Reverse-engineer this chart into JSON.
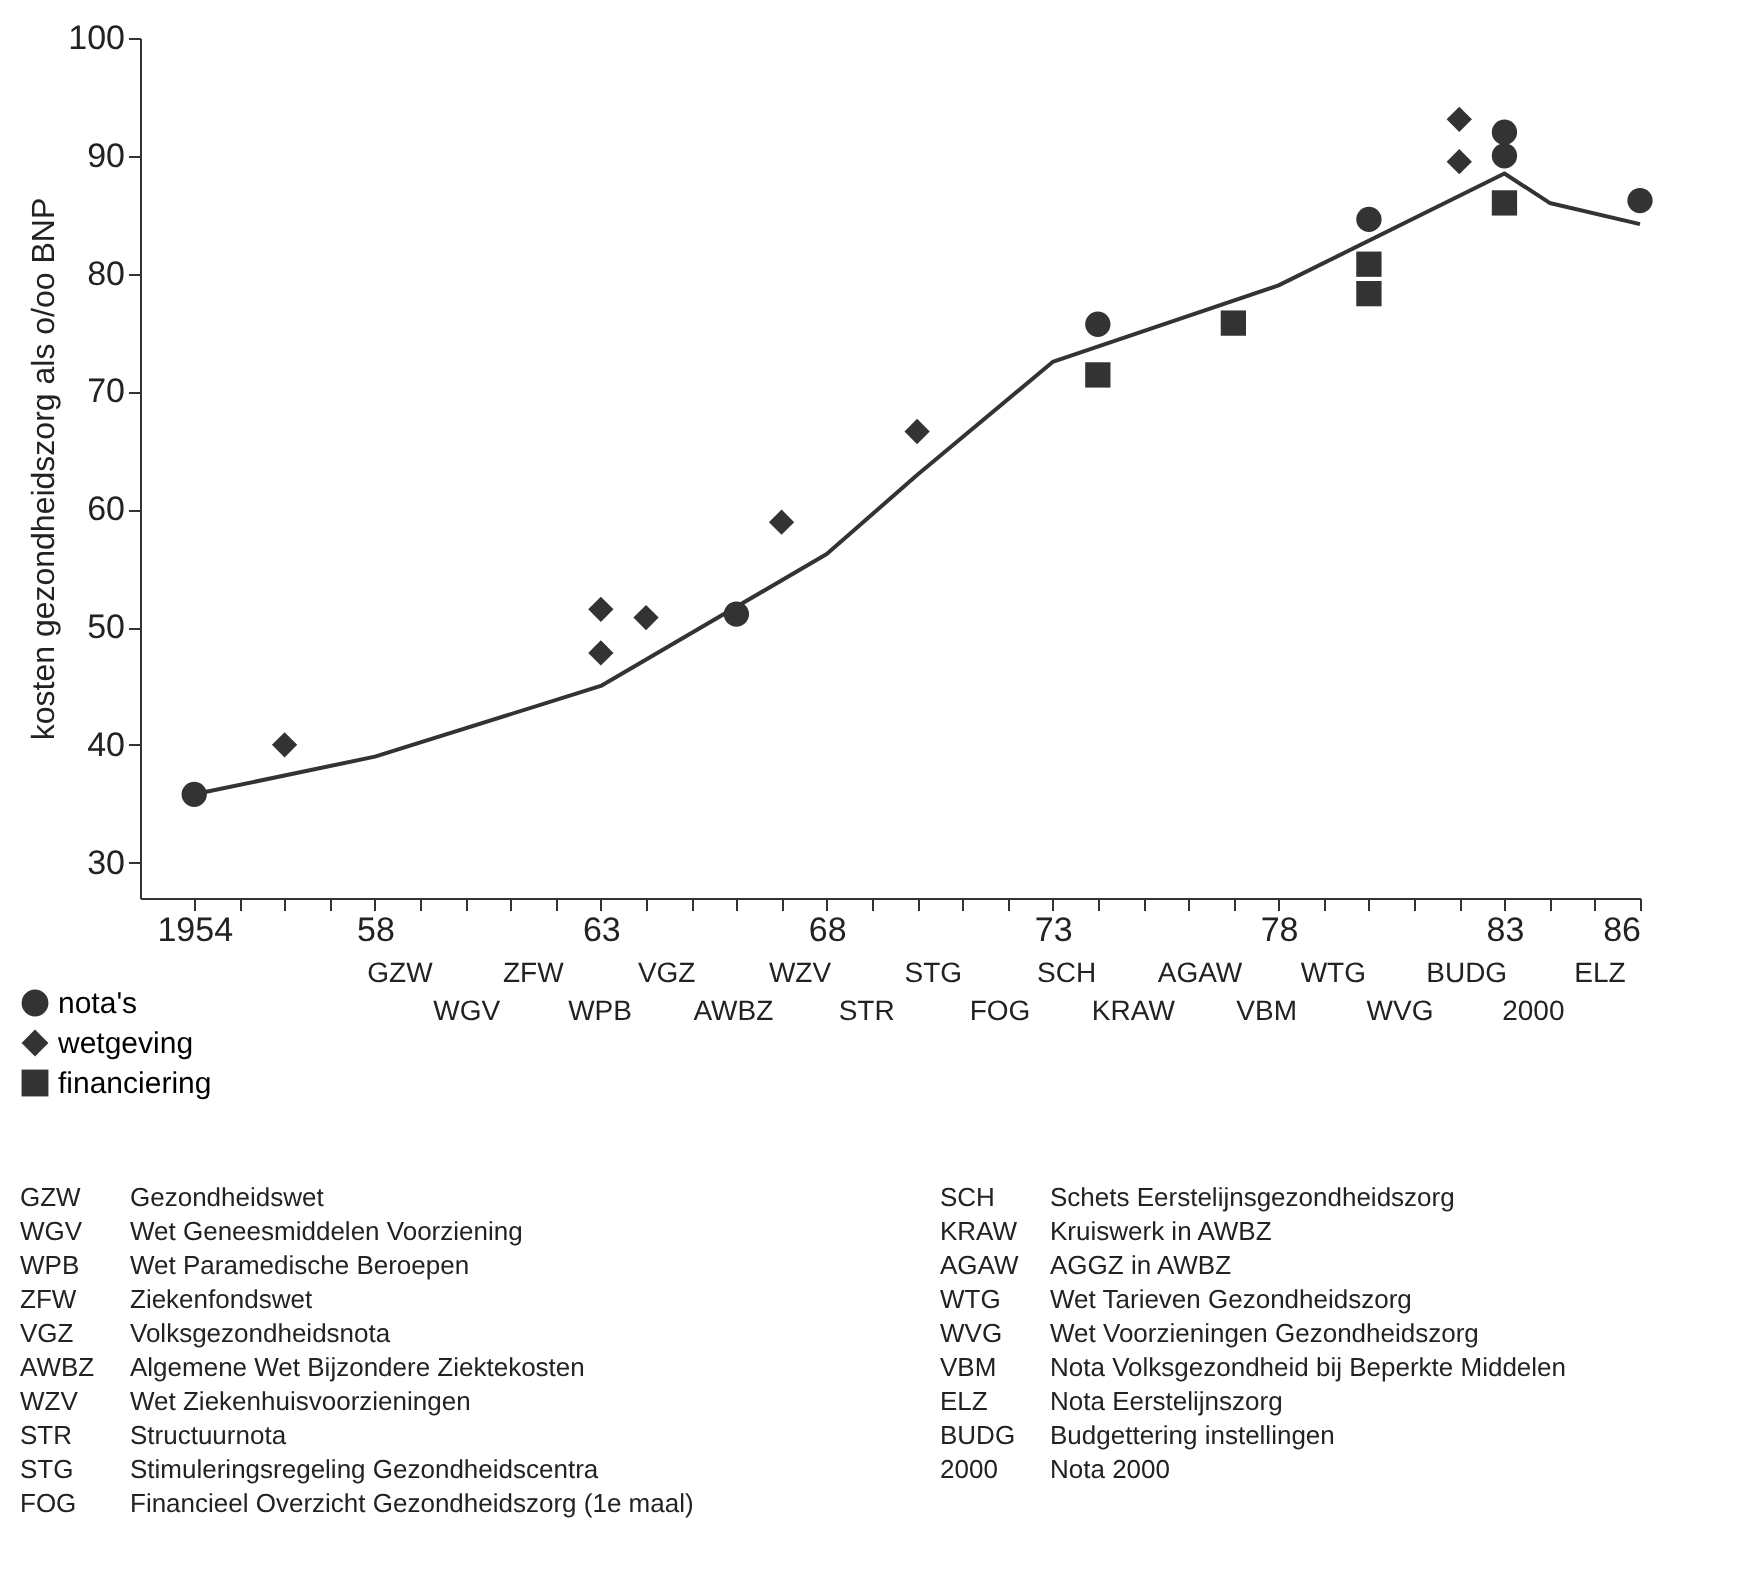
{
  "chart_data": {
    "type": "scatter",
    "ylabel": "kosten gezondheidszorg als o/oo BNP",
    "xlim": [
      1952.8,
      1986
    ],
    "ylim": [
      27,
      100
    ],
    "yticks": [
      30,
      40,
      50,
      60,
      70,
      80,
      90,
      100
    ],
    "xticks": [
      {
        "value": 1954,
        "label": "1954"
      },
      {
        "value": 1955,
        "label": null
      },
      {
        "value": 1956,
        "label": null
      },
      {
        "value": 1957,
        "label": null
      },
      {
        "value": 1958,
        "label": "58"
      },
      {
        "value": 1959,
        "label": null
      },
      {
        "value": 1960,
        "label": null
      },
      {
        "value": 1961,
        "label": null
      },
      {
        "value": 1962,
        "label": null
      },
      {
        "value": 1963,
        "label": "63"
      },
      {
        "value": 1964,
        "label": null
      },
      {
        "value": 1965,
        "label": null
      },
      {
        "value": 1966,
        "label": null
      },
      {
        "value": 1967,
        "label": null
      },
      {
        "value": 1968,
        "label": "68"
      },
      {
        "value": 1969,
        "label": null
      },
      {
        "value": 1970,
        "label": null
      },
      {
        "value": 1971,
        "label": null
      },
      {
        "value": 1972,
        "label": null
      },
      {
        "value": 1973,
        "label": "73"
      },
      {
        "value": 1974,
        "label": null
      },
      {
        "value": 1975,
        "label": null
      },
      {
        "value": 1976,
        "label": null
      },
      {
        "value": 1977,
        "label": null
      },
      {
        "value": 1978,
        "label": "78"
      },
      {
        "value": 1979,
        "label": null
      },
      {
        "value": 1980,
        "label": null
      },
      {
        "value": 1981,
        "label": null
      },
      {
        "value": 1982,
        "label": null
      },
      {
        "value": 1983,
        "label": "83"
      },
      {
        "value": 1984,
        "label": null
      },
      {
        "value": 1985,
        "label": null
      },
      {
        "value": 1986,
        "label": "86"
      }
    ],
    "grid": false,
    "legend": "bottom left",
    "series": [
      {
        "type": "line",
        "color": "#333333",
        "marker": "none",
        "line_style": "solid",
        "x": [
          1954,
          1958,
          1963,
          1968,
          1970,
          1973,
          1978,
          1983,
          1984,
          1986
        ],
        "values": [
          35.8,
          39.0,
          45.0,
          56.2,
          62.9,
          72.5,
          79.0,
          88.5,
          86.0,
          84.2
        ]
      },
      {
        "name": "nota's",
        "marker": "circle",
        "color": "#333333",
        "x": [
          1954,
          1966,
          1974,
          1980,
          1983,
          1983,
          1986
        ],
        "values": [
          35.8,
          51.1,
          75.7,
          84.6,
          92.0,
          90.0,
          86.2
        ]
      },
      {
        "name": "wetgeving",
        "marker": "diamond",
        "color": "#333333",
        "x": [
          1956,
          1963,
          1963,
          1964,
          1967,
          1970,
          1982,
          1982
        ],
        "values": [
          40.0,
          51.5,
          47.8,
          50.8,
          58.9,
          66.6,
          93.1,
          89.5
        ]
      },
      {
        "name": "financiering",
        "marker": "square",
        "color": "#333333",
        "x": [
          1974,
          1977,
          1980,
          1980,
          1983
        ],
        "values": [
          71.4,
          75.8,
          80.8,
          78.3,
          86.0
        ]
      }
    ],
    "annotations": [
      "GZW",
      "WGV",
      "ZFW",
      "WPB",
      "VGZ",
      "AWBZ",
      "WZV",
      "STR",
      "STG",
      "FOG",
      "SCH",
      "KRAW",
      "AGAW",
      "VBM",
      "WTG",
      "WVG",
      "BUDG",
      "2000",
      "ELZ",
      "GZW Gezondheidswet",
      "WGV Wet Geneesmiddelen Voorziening",
      "WPB Wet Paramedische Beroepen",
      "ZFW Ziekenfondswet",
      "VGZ Volksgezondheidsnota",
      "AWBZ Algemene Wet Bijzondere Ziektekosten",
      "WZV Wet Ziekenhuisvoorzieningen",
      "STR Structuurnota",
      "STG Stimuleringsregeling Gezondheidscentra",
      "FOG Financieel Overzicht Gezondheidszorg (1e maal)",
      "SCH Schets Eerstelijnsgezondheidszorg",
      "KRAW Kruiswerk in AWBZ",
      "AGAW AGGZ in AWBZ",
      "WTG Wet Tarieven Gezondheidszorg",
      "WVG Wet Voorzieningen Gezondheidszorg",
      "VBM Nota Volksgezondheid bij Beperkte Middelen",
      "ELZ Nota Eerstelijnszorg",
      "BUDG Budgettering instellingen",
      "2000 Nota 2000"
    ]
  }
}
